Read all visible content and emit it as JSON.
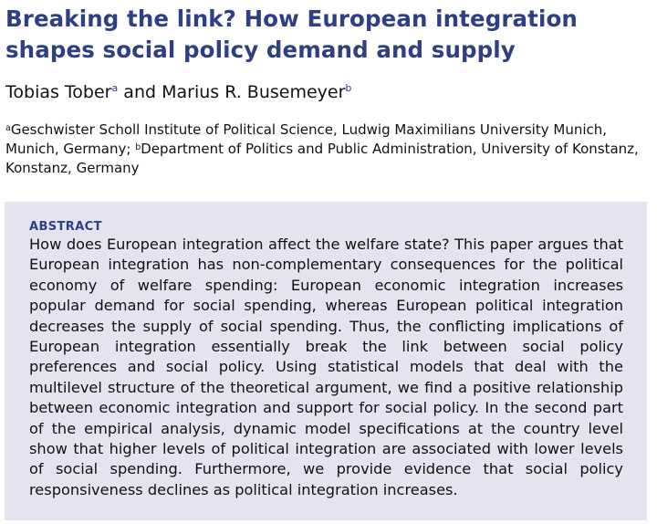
{
  "title": "Breaking the link? How European integration shapes social policy demand and supply",
  "authors": {
    "author1_name": "Tobias Tober",
    "author1_sup": "a",
    "connector": "and",
    "author2_name": "Marius R. Busemeyer",
    "author2_sup": "b"
  },
  "affiliations": {
    "a_sup": "a",
    "a_text": "Geschwister Scholl Institute of Political Science, Ludwig Maximilians University Munich, Munich, Germany;",
    "b_sup": "b",
    "b_text": "Department of Politics and Public Administration, University of Konstanz, Konstanz, Germany"
  },
  "abstract": {
    "heading": "ABSTRACT",
    "body": "How does European integration affect the welfare state? This paper argues that European integration has non-complementary consequences for the political economy of welfare spending: European economic integration increases popular demand for social spending, whereas European political integration decreases the supply of social spending. Thus, the conflicting implications of European integration essentially break the link between social policy preferences and social policy. Using statistical models that deal with the multilevel structure of the theoretical argument, we find a positive relationship between economic integration and support for social policy. In the second part of the empirical analysis, dynamic model specifications at the country level show that higher levels of political integration are associated with lower levels of social spending. Furthermore, we provide evidence that social policy responsiveness declines as political integration increases."
  },
  "colors": {
    "title": "#2e3f83",
    "abstract_background": "#e3e4ef"
  }
}
